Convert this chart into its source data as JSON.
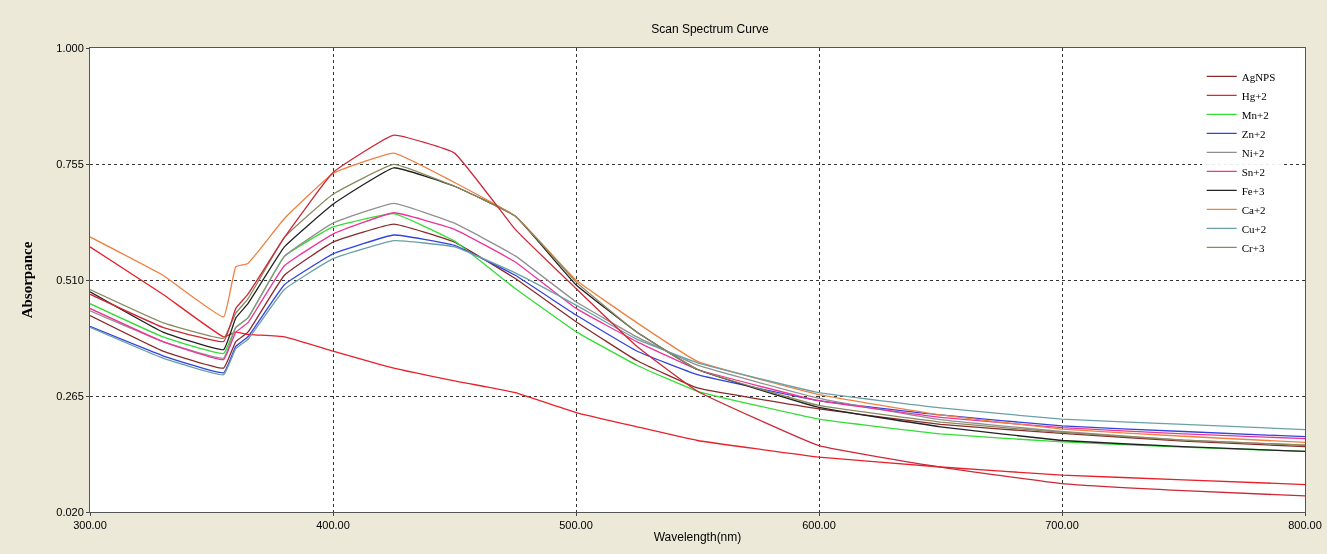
{
  "chart_data": {
    "type": "line",
    "title": "Scan Spectrum Curve",
    "xlabel": "Wavelength(nm)",
    "ylabel": "Absorpance",
    "x": [
      300,
      330,
      355,
      360,
      365,
      380,
      400,
      425,
      450,
      475,
      500,
      525,
      550,
      600,
      650,
      700,
      750,
      800
    ],
    "xlim": [
      300,
      800
    ],
    "xticks": [
      {
        "value": 300,
        "label": "300.00"
      },
      {
        "value": 400,
        "label": "400.00"
      },
      {
        "value": 500,
        "label": "500.00"
      },
      {
        "value": 600,
        "label": "600.00"
      },
      {
        "value": 700,
        "label": "700.00"
      },
      {
        "value": 800,
        "label": "800.00"
      }
    ],
    "ylim": [
      0.02,
      1.0
    ],
    "yticks": [
      {
        "value": 0.02,
        "label": "0.020"
      },
      {
        "value": 0.265,
        "label": "0.265"
      },
      {
        "value": 0.51,
        "label": "0.510"
      },
      {
        "value": 0.755,
        "label": "0.755"
      },
      {
        "value": 1.0,
        "label": "1.000"
      }
    ],
    "grid": true,
    "legend": "top right",
    "marker": "none",
    "line_style": "solid",
    "series": [
      {
        "name": "AgNPS",
        "color": "#8b2a2a",
        "values": [
          0.435,
          0.36,
          0.324,
          0.38,
          0.4,
          0.52,
          0.59,
          0.628,
          0.59,
          0.513,
          0.422,
          0.34,
          0.282,
          0.238,
          0.205,
          0.186,
          0.17,
          0.158
        ]
      },
      {
        "name": "Hg+2",
        "color": "#e8202a",
        "values": [
          0.58,
          0.48,
          0.39,
          0.4,
          0.395,
          0.39,
          0.36,
          0.324,
          0.297,
          0.272,
          0.23,
          0.2,
          0.171,
          0.136,
          0.115,
          0.098,
          0.088,
          0.078
        ]
      },
      {
        "name": "Mn+2",
        "color": "#33dd33",
        "values": [
          0.46,
          0.39,
          0.355,
          0.41,
          0.43,
          0.56,
          0.622,
          0.65,
          0.592,
          0.492,
          0.401,
          0.33,
          0.275,
          0.216,
          0.185,
          0.168,
          0.157,
          0.148
        ]
      },
      {
        "name": "Zn+2",
        "color": "#3344dd",
        "values": [
          0.412,
          0.35,
          0.314,
          0.37,
          0.39,
          0.5,
          0.565,
          0.605,
          0.583,
          0.52,
          0.436,
          0.36,
          0.31,
          0.255,
          0.225,
          0.202,
          0.19,
          0.179
        ]
      },
      {
        "name": "Ni+2",
        "color": "#909090",
        "values": [
          0.445,
          0.38,
          0.345,
          0.41,
          0.43,
          0.56,
          0.63,
          0.672,
          0.63,
          0.561,
          0.464,
          0.39,
          0.33,
          0.26,
          0.215,
          0.19,
          0.172,
          0.161
        ]
      },
      {
        "name": "Sn+2",
        "color": "#ee3399",
        "values": [
          0.45,
          0.38,
          0.342,
          0.4,
          0.42,
          0.54,
          0.607,
          0.652,
          0.617,
          0.548,
          0.45,
          0.38,
          0.321,
          0.255,
          0.22,
          0.198,
          0.185,
          0.175
        ]
      },
      {
        "name": "Fe+3",
        "color": "#222222",
        "values": [
          0.485,
          0.4,
          0.363,
          0.43,
          0.46,
          0.58,
          0.67,
          0.747,
          0.708,
          0.645,
          0.5,
          0.4,
          0.321,
          0.241,
          0.2,
          0.171,
          0.158,
          0.148
        ]
      },
      {
        "name": "Ca+2",
        "color": "#f08040",
        "values": [
          0.601,
          0.52,
          0.432,
          0.538,
          0.545,
          0.64,
          0.735,
          0.778,
          0.716,
          0.645,
          0.51,
          0.42,
          0.338,
          0.268,
          0.225,
          0.195,
          0.18,
          0.167
        ]
      },
      {
        "name": "Cu+2",
        "color": "#6aa0a8",
        "values": [
          0.41,
          0.345,
          0.31,
          0.365,
          0.385,
          0.49,
          0.555,
          0.593,
          0.58,
          0.525,
          0.457,
          0.385,
          0.335,
          0.272,
          0.24,
          0.216,
          0.205,
          0.194
        ]
      },
      {
        "name": "Cr+3",
        "color": "#8a8a60",
        "values": [
          0.49,
          0.42,
          0.387,
          0.44,
          0.47,
          0.6,
          0.691,
          0.754,
          0.708,
          0.645,
          0.506,
          0.4,
          0.321,
          0.245,
          0.21,
          0.188,
          0.172,
          0.161
        ]
      },
      {
        "color": "#cc2838",
        "values": [
          0.48,
          0.41,
          0.38,
          0.45,
          0.48,
          0.6,
          0.737,
          0.816,
          0.778,
          0.617,
          0.492,
          0.37,
          0.275,
          0.16,
          0.115,
          0.08,
          0.065,
          0.054
        ]
      }
    ]
  }
}
